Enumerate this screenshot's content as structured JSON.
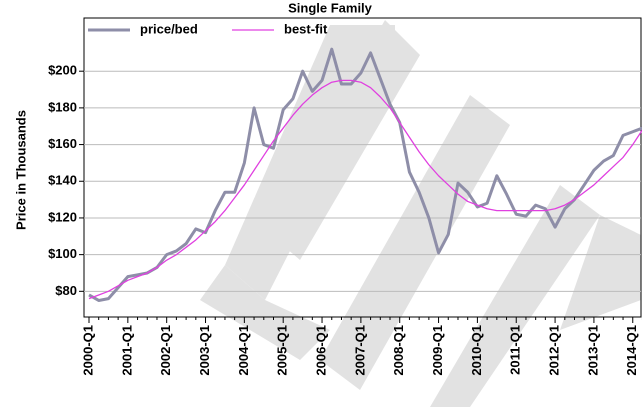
{
  "chart_data": {
    "type": "line",
    "title": "Single Family",
    "y_label": "Price in Thousands",
    "categories": [
      "2000-Q1",
      null,
      null,
      null,
      "2001-Q1",
      null,
      null,
      null,
      "2002-Q1",
      null,
      null,
      null,
      "2003-Q1",
      null,
      null,
      null,
      "2004-Q1",
      null,
      null,
      null,
      "2005-Q1",
      null,
      null,
      null,
      "2006-Q1",
      null,
      null,
      null,
      "2007-Q1",
      null,
      null,
      null,
      "2008-Q1",
      null,
      null,
      null,
      "2009-Q1",
      null,
      null,
      null,
      "2010-Q1",
      null,
      null,
      null,
      "2011-Q1",
      null,
      null,
      null,
      "2012-Q1",
      null,
      null,
      null,
      "2013-Q1",
      null,
      null,
      null,
      "2014-Q1",
      null
    ],
    "series": [
      {
        "name": "price/bed",
        "color": "#8e8ea8",
        "values": [
          78,
          75,
          76,
          82,
          88,
          89,
          90,
          93,
          100,
          102,
          106,
          114,
          112,
          124,
          134,
          134,
          150,
          180,
          160,
          158,
          179,
          185,
          200,
          189,
          195,
          212,
          193,
          193,
          199,
          210,
          196,
          182,
          172,
          145,
          134,
          120,
          101,
          111,
          139,
          134,
          126,
          128,
          143,
          133,
          122,
          121,
          127,
          125,
          115,
          125,
          130,
          138,
          146,
          151,
          154,
          165,
          167,
          169
        ]
      },
      {
        "name": "best-fit",
        "color": "#e040e0",
        "values": [
          76,
          78,
          80,
          83,
          86,
          88,
          90,
          93,
          97,
          100,
          104,
          108,
          113,
          118,
          124,
          131,
          138,
          146,
          154,
          162,
          169,
          176,
          182,
          187,
          191,
          194,
          195,
          195,
          194,
          191,
          186,
          180,
          172,
          164,
          156,
          149,
          143,
          138,
          133,
          129,
          127,
          125,
          124,
          124,
          124,
          124,
          124,
          124,
          125,
          127,
          130,
          134,
          138,
          143,
          148,
          153,
          160,
          168
        ]
      }
    ],
    "ylim": [
      66,
      229
    ],
    "yticks": [
      {
        "value": 80,
        "label": "$80"
      },
      {
        "value": 100,
        "label": "$100"
      },
      {
        "value": 120,
        "label": "$120"
      },
      {
        "value": 140,
        "label": "$140"
      },
      {
        "value": 160,
        "label": "$160"
      },
      {
        "value": 180,
        "label": "$180"
      },
      {
        "value": 200,
        "label": "$200"
      }
    ],
    "grid": true
  }
}
